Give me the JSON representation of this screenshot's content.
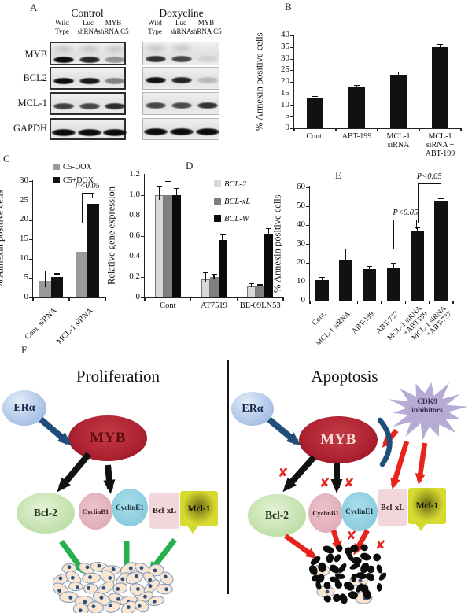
{
  "panel_a": {
    "label": "A",
    "groups": [
      {
        "title": "Control"
      },
      {
        "title": "Doxycline"
      }
    ],
    "lanes": [
      "Wild\nType",
      "Luc\nshRNA",
      "MYB\nshRNA C5"
    ],
    "rows": [
      {
        "name": "MYB",
        "control": [
          1.0,
          0.88,
          0.38
        ],
        "doxycline": [
          0.82,
          0.72,
          0.08
        ]
      },
      {
        "name": "BCL2",
        "control": [
          1.0,
          0.93,
          0.45
        ],
        "doxycline": [
          0.97,
          0.88,
          0.18
        ]
      },
      {
        "name": "MCL-1",
        "control": [
          0.75,
          0.72,
          0.85
        ],
        "doxycline": [
          0.72,
          0.7,
          0.82
        ]
      },
      {
        "name": "GAPDH",
        "control": [
          1.0,
          1.0,
          1.0
        ],
        "doxycline": [
          1.0,
          1.0,
          1.0
        ]
      }
    ]
  },
  "chart_data": [
    {
      "id": "b",
      "panel": "B",
      "type": "bar",
      "ylabel": "% Annexin positive cells",
      "ylim": [
        0,
        40
      ],
      "ystep": 5,
      "grid": false,
      "bar_color": "#111111",
      "categories": [
        "Cont.",
        "ABT-199",
        "MCL-1\nsiRNA",
        "MCL-1\nsiRNA +\nABT-199"
      ],
      "values": [
        13,
        17.5,
        23,
        35
      ],
      "errors": [
        0.5,
        0.8,
        1.2,
        1.0
      ]
    },
    {
      "id": "c",
      "panel": "C",
      "type": "bar",
      "ylabel": "% Annexin positive cells",
      "ylim": [
        0,
        30
      ],
      "ystep": 5,
      "grid": false,
      "rotate_labels": true,
      "categories": [
        "Cont. siRNA",
        "MCL-1 siRNA"
      ],
      "series": [
        {
          "name": "C5-DOX",
          "color": "#9a9a9a",
          "values": [
            4.2,
            11.8
          ],
          "errors": [
            2.5,
            0
          ]
        },
        {
          "name": "C5+DOX",
          "color": "#111111",
          "values": [
            5.2,
            24.2
          ],
          "errors": [
            0.8,
            0
          ]
        }
      ],
      "brackets": [
        {
          "x1": {
            "group": 1,
            "series": 0
          },
          "x2": {
            "group": 1,
            "series": 1
          },
          "y": 27,
          "legs": [
            8,
            1.5
          ],
          "label": "P<0.05"
        }
      ]
    },
    {
      "id": "d",
      "panel": "D",
      "type": "bar",
      "ylabel": "Relative gene expression",
      "ylim": [
        0,
        1.2
      ],
      "ystep": 0.2,
      "decimals": 1,
      "grid": false,
      "legend_italic": true,
      "categories": [
        "Cont",
        "AT7519",
        "BE-09LN53"
      ],
      "series": [
        {
          "name": "BCL-2",
          "color": "#d9d9d9",
          "border": "#777777",
          "values": [
            1.0,
            0.18,
            0.11
          ],
          "errors": [
            0.08,
            0.06,
            0.02
          ]
        },
        {
          "name": "BCL-xL",
          "color": "#7f7f7f",
          "values": [
            1.0,
            0.2,
            0.11
          ],
          "errors": [
            0.13,
            0.02,
            0.01
          ]
        },
        {
          "name": "BCL-W",
          "color": "#0a0a0a",
          "values": [
            1.0,
            0.56,
            0.62
          ],
          "errors": [
            0.06,
            0.05,
            0.05
          ]
        }
      ]
    },
    {
      "id": "e",
      "panel": "E",
      "type": "bar",
      "ylabel": "% Annexin positive cells",
      "ylim": [
        0,
        60
      ],
      "ystep": 10,
      "grid": false,
      "bar_color": "#111111",
      "rotate_labels": true,
      "categories": [
        "Cont.",
        "MCL-1 siRNA",
        "ABT-199",
        "ABT-737",
        "MCL-1 siRNA\n+ABT199",
        "MCL-1 siRNA\n+ABT-737"
      ],
      "values": [
        11,
        21.5,
        16.5,
        17,
        37,
        53
      ],
      "errors": [
        1,
        5.5,
        1.5,
        2.5,
        1.5,
        0.8
      ],
      "brackets": [
        {
          "x1": {
            "bar": 3
          },
          "x2": {
            "bar": 4
          },
          "y": 43,
          "legs": [
            16,
            5
          ],
          "label": "P<0.05"
        },
        {
          "x1": {
            "bar": 4
          },
          "x2": {
            "bar": 5
          },
          "y": 62,
          "legs": [
            21,
            5
          ],
          "label": "P<0.05"
        }
      ]
    }
  ],
  "panel_f": {
    "label": "F",
    "left_title": "Proliferation",
    "right_title": "Apoptosis",
    "era_label": "ERα",
    "myb_label": "MYB",
    "targets": [
      "Bcl-2",
      "CyclinB1",
      "CyclinE1",
      "Bcl-xL",
      "Mcl-1"
    ],
    "cdk9_label": "CDK9\ninhibitors",
    "x_icon": "✘",
    "colors": {
      "myb_red": "#b02433",
      "era_blue": "#a9c2e6",
      "bcl2_green": "#bfdfa8",
      "cyclinb1_pink": "#dfabb6",
      "cycline1_blue": "#8ccede",
      "bclxl_pink": "#f1d7dc",
      "mcl1_yellow": "#d7da2f",
      "cdk9_purple": "#b6abd4",
      "arrow_blue": "#1f4e79",
      "arrow_green": "#27b04b",
      "arrow_red": "#e8231c",
      "arrow_black": "#111111"
    }
  }
}
